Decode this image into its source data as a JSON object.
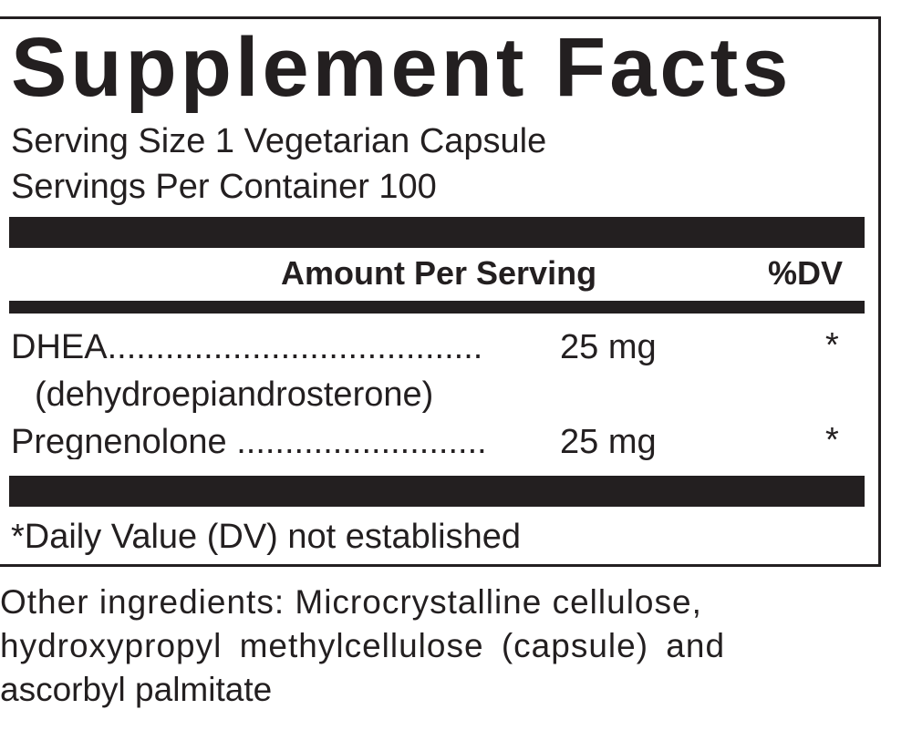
{
  "title": "Supplement Facts",
  "serving_size": "Serving Size 1 Vegetarian Capsule",
  "servings_per_container": "Servings Per Container 100",
  "header": {
    "amount": "Amount Per Serving",
    "dv": "%DV"
  },
  "rows": [
    {
      "name": "DHEA.......................................",
      "amount": "25 mg",
      "dv": "*",
      "sub": "(dehydroepiandrosterone)"
    },
    {
      "name": "Pregnenolone ..........................",
      "amount": "25 mg",
      "dv": "*"
    }
  ],
  "footnote": "*Daily Value (DV) not established",
  "other_ingredients": [
    "Other ingredients: Microcrystalline cellulose,",
    "hydroxypropyl methylcellulose (capsule) and",
    "ascorbyl palmitate"
  ]
}
